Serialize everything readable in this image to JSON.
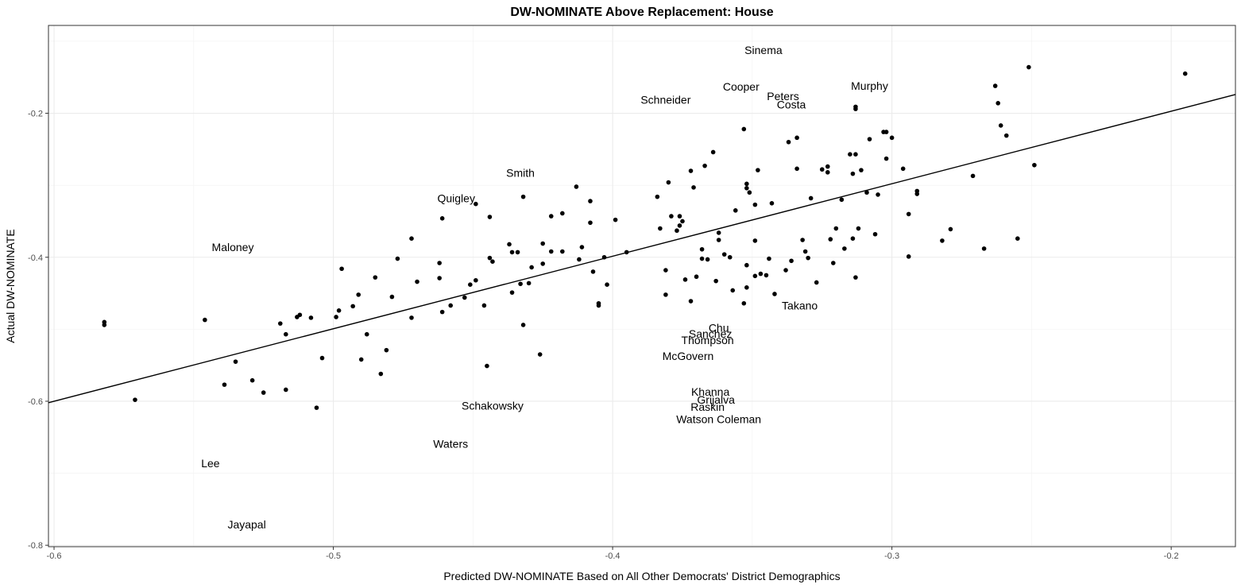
{
  "chart_data": {
    "type": "scatter",
    "title": "DW-NOMINATE Above Replacement: House",
    "xlabel": "Predicted DW-NOMINATE Based on All Other Democrats' District Demographics",
    "ylabel": "Actual DW-NOMINATE",
    "xlim": [
      -0.602,
      -0.177
    ],
    "ylim": [
      -0.802,
      -0.078
    ],
    "xticks": [
      {
        "value": -0.6,
        "label": "-0.6"
      },
      {
        "value": -0.5,
        "label": "-0.5"
      },
      {
        "value": -0.4,
        "label": "-0.4"
      },
      {
        "value": -0.3,
        "label": "-0.3"
      },
      {
        "value": -0.2,
        "label": "-0.2"
      }
    ],
    "yticks": [
      {
        "value": -0.8,
        "label": "-0.8"
      },
      {
        "value": -0.6,
        "label": "-0.6"
      },
      {
        "value": -0.4,
        "label": "-0.4"
      },
      {
        "value": -0.2,
        "label": "-0.2"
      }
    ],
    "minor_x": [
      -0.55,
      -0.45,
      -0.35,
      -0.25
    ],
    "minor_y": [
      -0.7,
      -0.5,
      -0.3,
      -0.1
    ],
    "grid": true,
    "point_color": "#000000",
    "line_color": "#000000",
    "fit_line": {
      "x": [
        -0.602,
        -0.177
      ],
      "y": [
        -0.602,
        -0.174
      ]
    },
    "points": [
      [
        -0.582,
        -0.49
      ],
      [
        -0.582,
        -0.494
      ],
      [
        -0.571,
        -0.598
      ],
      [
        -0.546,
        -0.487
      ],
      [
        -0.539,
        -0.577
      ],
      [
        -0.535,
        -0.545
      ],
      [
        -0.529,
        -0.571
      ],
      [
        -0.525,
        -0.588
      ],
      [
        -0.519,
        -0.492
      ],
      [
        -0.517,
        -0.507
      ],
      [
        -0.517,
        -0.584
      ],
      [
        -0.513,
        -0.483
      ],
      [
        -0.512,
        -0.48
      ],
      [
        -0.508,
        -0.484
      ],
      [
        -0.506,
        -0.609
      ],
      [
        -0.504,
        -0.54
      ],
      [
        -0.499,
        -0.483
      ],
      [
        -0.498,
        -0.474
      ],
      [
        -0.497,
        -0.416
      ],
      [
        -0.493,
        -0.468
      ],
      [
        -0.491,
        -0.452
      ],
      [
        -0.49,
        -0.542
      ],
      [
        -0.488,
        -0.507
      ],
      [
        -0.485,
        -0.428
      ],
      [
        -0.483,
        -0.562
      ],
      [
        -0.481,
        -0.529
      ],
      [
        -0.479,
        -0.455
      ],
      [
        -0.477,
        -0.402
      ],
      [
        -0.472,
        -0.374
      ],
      [
        -0.472,
        -0.484
      ],
      [
        -0.47,
        -0.434
      ],
      [
        -0.462,
        -0.408
      ],
      [
        -0.462,
        -0.429
      ],
      [
        -0.461,
        -0.476
      ],
      [
        -0.461,
        -0.346
      ],
      [
        -0.458,
        -0.467
      ],
      [
        -0.453,
        -0.456
      ],
      [
        -0.451,
        -0.438
      ],
      [
        -0.449,
        -0.432
      ],
      [
        -0.449,
        -0.326
      ],
      [
        -0.446,
        -0.467
      ],
      [
        -0.445,
        -0.551
      ],
      [
        -0.444,
        -0.344
      ],
      [
        -0.444,
        -0.401
      ],
      [
        -0.443,
        -0.406
      ],
      [
        -0.437,
        -0.382
      ],
      [
        -0.436,
        -0.393
      ],
      [
        -0.436,
        -0.449
      ],
      [
        -0.434,
        -0.393
      ],
      [
        -0.433,
        -0.437
      ],
      [
        -0.432,
        -0.316
      ],
      [
        -0.432,
        -0.494
      ],
      [
        -0.43,
        -0.436
      ],
      [
        -0.429,
        -0.414
      ],
      [
        -0.426,
        -0.535
      ],
      [
        -0.425,
        -0.381
      ],
      [
        -0.425,
        -0.409
      ],
      [
        -0.422,
        -0.343
      ],
      [
        -0.422,
        -0.392
      ],
      [
        -0.418,
        -0.339
      ],
      [
        -0.418,
        -0.392
      ],
      [
        -0.413,
        -0.302
      ],
      [
        -0.412,
        -0.403
      ],
      [
        -0.411,
        -0.386
      ],
      [
        -0.408,
        -0.322
      ],
      [
        -0.408,
        -0.352
      ],
      [
        -0.407,
        -0.42
      ],
      [
        -0.405,
        -0.464
      ],
      [
        -0.405,
        -0.467
      ],
      [
        -0.403,
        -0.4
      ],
      [
        -0.402,
        -0.438
      ],
      [
        -0.399,
        -0.348
      ],
      [
        -0.395,
        -0.393
      ],
      [
        -0.384,
        -0.316
      ],
      [
        -0.383,
        -0.36
      ],
      [
        -0.381,
        -0.418
      ],
      [
        -0.381,
        -0.452
      ],
      [
        -0.38,
        -0.296
      ],
      [
        -0.379,
        -0.343
      ],
      [
        -0.377,
        -0.363
      ],
      [
        -0.376,
        -0.356
      ],
      [
        -0.376,
        -0.343
      ],
      [
        -0.375,
        -0.35
      ],
      [
        -0.374,
        -0.431
      ],
      [
        -0.372,
        -0.461
      ],
      [
        -0.372,
        -0.28
      ],
      [
        -0.371,
        -0.303
      ],
      [
        -0.37,
        -0.427
      ],
      [
        -0.368,
        -0.389
      ],
      [
        -0.368,
        -0.402
      ],
      [
        -0.367,
        -0.273
      ],
      [
        -0.366,
        -0.403
      ],
      [
        -0.364,
        -0.254
      ],
      [
        -0.363,
        -0.433
      ],
      [
        -0.362,
        -0.366
      ],
      [
        -0.362,
        -0.376
      ],
      [
        -0.36,
        -0.396
      ],
      [
        -0.358,
        -0.4
      ],
      [
        -0.357,
        -0.446
      ],
      [
        -0.356,
        -0.335
      ],
      [
        -0.353,
        -0.222
      ],
      [
        -0.353,
        -0.464
      ],
      [
        -0.352,
        -0.298
      ],
      [
        -0.352,
        -0.304
      ],
      [
        -0.352,
        -0.411
      ],
      [
        -0.352,
        -0.442
      ],
      [
        -0.351,
        -0.31
      ],
      [
        -0.349,
        -0.327
      ],
      [
        -0.349,
        -0.377
      ],
      [
        -0.349,
        -0.426
      ],
      [
        -0.348,
        -0.279
      ],
      [
        -0.347,
        -0.423
      ],
      [
        -0.345,
        -0.425
      ],
      [
        -0.344,
        -0.402
      ],
      [
        -0.343,
        -0.325
      ],
      [
        -0.342,
        -0.451
      ],
      [
        -0.338,
        -0.418
      ],
      [
        -0.337,
        -0.24
      ],
      [
        -0.336,
        -0.405
      ],
      [
        -0.334,
        -0.234
      ],
      [
        -0.334,
        -0.277
      ],
      [
        -0.332,
        -0.376
      ],
      [
        -0.331,
        -0.392
      ],
      [
        -0.33,
        -0.401
      ],
      [
        -0.329,
        -0.318
      ],
      [
        -0.327,
        -0.435
      ],
      [
        -0.325,
        -0.278
      ],
      [
        -0.323,
        -0.282
      ],
      [
        -0.323,
        -0.274
      ],
      [
        -0.322,
        -0.375
      ],
      [
        -0.321,
        -0.408
      ],
      [
        -0.32,
        -0.36
      ],
      [
        -0.318,
        -0.32
      ],
      [
        -0.317,
        -0.388
      ],
      [
        -0.315,
        -0.257
      ],
      [
        -0.314,
        -0.284
      ],
      [
        -0.314,
        -0.374
      ],
      [
        -0.313,
        -0.191
      ],
      [
        -0.313,
        -0.194
      ],
      [
        -0.313,
        -0.257
      ],
      [
        -0.313,
        -0.428
      ],
      [
        -0.312,
        -0.36
      ],
      [
        -0.311,
        -0.279
      ],
      [
        -0.309,
        -0.31
      ],
      [
        -0.308,
        -0.236
      ],
      [
        -0.306,
        -0.368
      ],
      [
        -0.305,
        -0.313
      ],
      [
        -0.303,
        -0.226
      ],
      [
        -0.302,
        -0.263
      ],
      [
        -0.302,
        -0.226
      ],
      [
        -0.3,
        -0.234
      ],
      [
        -0.296,
        -0.277
      ],
      [
        -0.294,
        -0.34
      ],
      [
        -0.294,
        -0.399
      ],
      [
        -0.291,
        -0.308
      ],
      [
        -0.291,
        -0.312
      ],
      [
        -0.282,
        -0.377
      ],
      [
        -0.279,
        -0.361
      ],
      [
        -0.271,
        -0.287
      ],
      [
        -0.267,
        -0.388
      ],
      [
        -0.263,
        -0.162
      ],
      [
        -0.262,
        -0.186
      ],
      [
        -0.261,
        -0.217
      ],
      [
        -0.259,
        -0.231
      ],
      [
        -0.255,
        -0.374
      ],
      [
        -0.251,
        -0.136
      ],
      [
        -0.249,
        -0.272
      ],
      [
        -0.195,
        -0.145
      ]
    ],
    "annotations": [
      {
        "label": "Sinema",
        "x": -0.346,
        "y": -0.112
      },
      {
        "label": "Cooper",
        "x": -0.354,
        "y": -0.163
      },
      {
        "label": "Murphy",
        "x": -0.308,
        "y": -0.162
      },
      {
        "label": "Peters",
        "x": -0.339,
        "y": -0.176
      },
      {
        "label": "Schneider",
        "x": -0.381,
        "y": -0.181
      },
      {
        "label": "Costa",
        "x": -0.336,
        "y": -0.188
      },
      {
        "label": "Smith",
        "x": -0.433,
        "y": -0.283
      },
      {
        "label": "Quigley",
        "x": -0.456,
        "y": -0.318
      },
      {
        "label": "Maloney",
        "x": -0.536,
        "y": -0.386
      },
      {
        "label": "Takano",
        "x": -0.333,
        "y": -0.467
      },
      {
        "label": "Chu",
        "x": -0.362,
        "y": -0.498
      },
      {
        "label": "Sanchez",
        "x": -0.365,
        "y": -0.506
      },
      {
        "label": "Thompson",
        "x": -0.366,
        "y": -0.515
      },
      {
        "label": "McGovern",
        "x": -0.373,
        "y": -0.537
      },
      {
        "label": "Khanna",
        "x": -0.365,
        "y": -0.587
      },
      {
        "label": "Grijalva",
        "x": -0.363,
        "y": -0.598
      },
      {
        "label": "Raskin",
        "x": -0.366,
        "y": -0.608
      },
      {
        "label": "Schakowsky",
        "x": -0.443,
        "y": -0.606
      },
      {
        "label": "Watson Coleman",
        "x": -0.362,
        "y": -0.625
      },
      {
        "label": "Waters",
        "x": -0.458,
        "y": -0.659
      },
      {
        "label": "Lee",
        "x": -0.544,
        "y": -0.686
      },
      {
        "label": "Jayapal",
        "x": -0.531,
        "y": -0.771
      }
    ]
  }
}
